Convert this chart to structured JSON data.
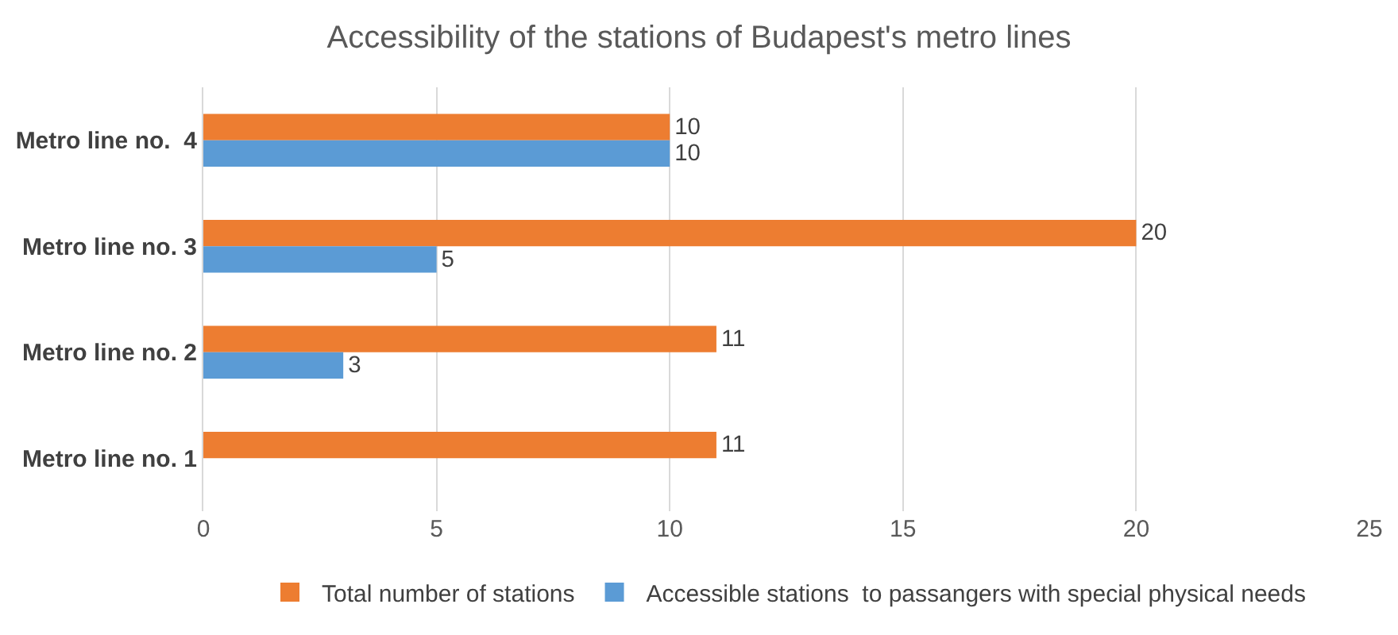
{
  "chart_data": {
    "type": "bar",
    "orientation": "horizontal",
    "title": "Accessibility of the stations of Budapest's metro lines",
    "categories": [
      "Metro line no.  4",
      "Metro line no. 3",
      "Metro line no. 2",
      "Metro line no. 1"
    ],
    "series": [
      {
        "name": "Total number of stations",
        "color": "#ed7d31",
        "values": [
          10,
          20,
          11,
          11
        ],
        "value_labels": [
          "10",
          "20",
          "11",
          "11"
        ]
      },
      {
        "name": "Accessible stations  to passangers with special physical needs",
        "color": "#5b9bd5",
        "values": [
          10,
          5,
          3,
          null
        ],
        "value_labels": [
          "10",
          "5",
          "3",
          null
        ]
      }
    ],
    "xlim": [
      0,
      25
    ],
    "xticks": [
      0,
      5,
      10,
      15,
      20,
      25
    ],
    "grid": "x",
    "legend": "bottom"
  }
}
